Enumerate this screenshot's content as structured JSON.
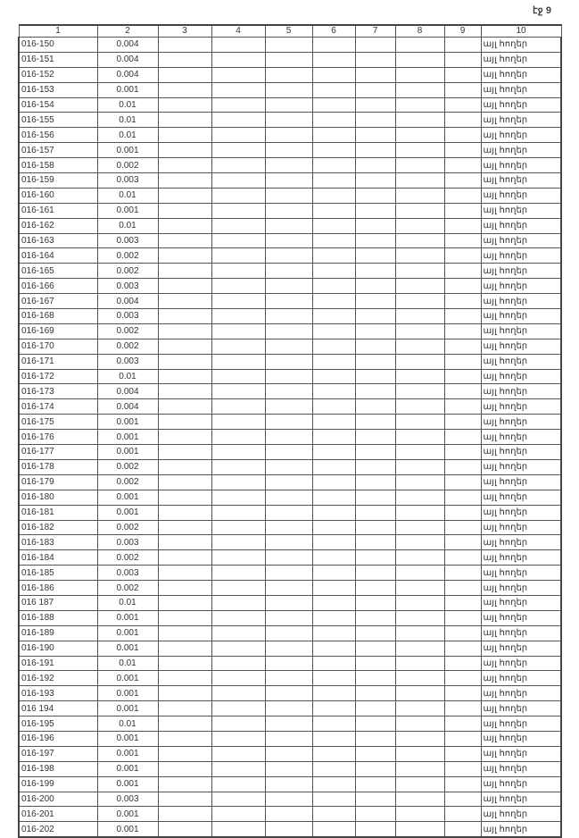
{
  "page_label": "էջ 9",
  "table": {
    "headers": [
      "1",
      "2",
      "3",
      "4",
      "5",
      "6",
      "7",
      "8",
      "9",
      "10"
    ],
    "rows": [
      [
        "016-150",
        "0.004",
        "այլ հողեր"
      ],
      [
        "016-151",
        "0.004",
        "այլ հողեր"
      ],
      [
        "016-152",
        "0.004",
        "այլ հողեր"
      ],
      [
        "016-153",
        "0.001",
        "այլ հողեր"
      ],
      [
        "016-154",
        "0.01",
        "այլ հողեր"
      ],
      [
        "016-155",
        "0.01",
        "այլ հողեր"
      ],
      [
        "016-156",
        "0.01",
        "այլ հողեր"
      ],
      [
        "016-157",
        "0.001",
        "այլ հողեր"
      ],
      [
        "016-158",
        "0.002",
        "այլ հողեր"
      ],
      [
        "016-159",
        "0.003",
        "այլ հողեր"
      ],
      [
        "016-160",
        "0.01",
        "այլ հողեր"
      ],
      [
        "016-161",
        "0.001",
        "այլ հողեր"
      ],
      [
        "016-162",
        "0.01",
        "այլ հողեր"
      ],
      [
        "016-163",
        "0.003",
        "այլ հողեր"
      ],
      [
        "016-164",
        "0.002",
        "այլ հողեր"
      ],
      [
        "016-165",
        "0.002",
        "այլ հողեր"
      ],
      [
        "016-166",
        "0.003",
        "այլ հողեր"
      ],
      [
        "016-167",
        "0.004",
        "այլ հողեր"
      ],
      [
        "016-168",
        "0.003",
        "այլ հողեր"
      ],
      [
        "016-169",
        "0.002",
        "այլ հողեր"
      ],
      [
        "016-170",
        "0.002",
        "այլ հողեր"
      ],
      [
        "016-171",
        "0.003",
        "այլ հողեր"
      ],
      [
        "016-172",
        "0.01",
        "այլ հողեր"
      ],
      [
        "016-173",
        "0.004",
        "այլ հողեր"
      ],
      [
        "016-174",
        "0.004",
        "այլ հողեր"
      ],
      [
        "016-175",
        "0.001",
        "այլ հողեր"
      ],
      [
        "016-176",
        "0.001",
        "այլ հողեր"
      ],
      [
        "016-177",
        "0.001",
        "այլ հողեր"
      ],
      [
        "016-178",
        "0.002",
        "այլ հողեր"
      ],
      [
        "016-179",
        "0.002",
        "այլ հողեր"
      ],
      [
        "016-180",
        "0.001",
        "այլ հողեր"
      ],
      [
        "016-181",
        "0.001",
        "այլ հողեր"
      ],
      [
        "016-182",
        "0.002",
        "այլ հողեր"
      ],
      [
        "016-183",
        "0.003",
        "այլ հողեր"
      ],
      [
        "016-184",
        "0.002",
        "այլ հողեր"
      ],
      [
        "016-185",
        "0.003",
        "այլ հողեր"
      ],
      [
        "016-186",
        "0.002",
        "այլ հողեր"
      ],
      [
        "016 187",
        "0.01",
        "այլ հողեր"
      ],
      [
        "016-188",
        "0.001",
        "այլ հողեր"
      ],
      [
        "016-189",
        "0.001",
        "այլ հողեր"
      ],
      [
        "016-190",
        "0.001",
        "այլ հողեր"
      ],
      [
        "016-191",
        "0.01",
        "այլ հողեր"
      ],
      [
        "016-192",
        "0.001",
        "այլ հողեր"
      ],
      [
        "016-193",
        "0.001",
        "այլ հողեր"
      ],
      [
        "016 194",
        "0.001",
        "այլ հողեր"
      ],
      [
        "016-195",
        "0.01",
        "այլ հողեր"
      ],
      [
        "016-196",
        "0.001",
        "այլ հողեր"
      ],
      [
        "016-197",
        "0.001",
        "այլ հողեր"
      ],
      [
        "016-198",
        "0.001",
        "այլ հողեր"
      ],
      [
        "016-199",
        "0.001",
        "այլ հողեր"
      ],
      [
        "016-200",
        "0.003",
        "այլ հողեր"
      ],
      [
        "016-201",
        "0.001",
        "այլ հողեր"
      ],
      [
        "016-202",
        "0.001",
        "այլ հողեր"
      ]
    ]
  }
}
